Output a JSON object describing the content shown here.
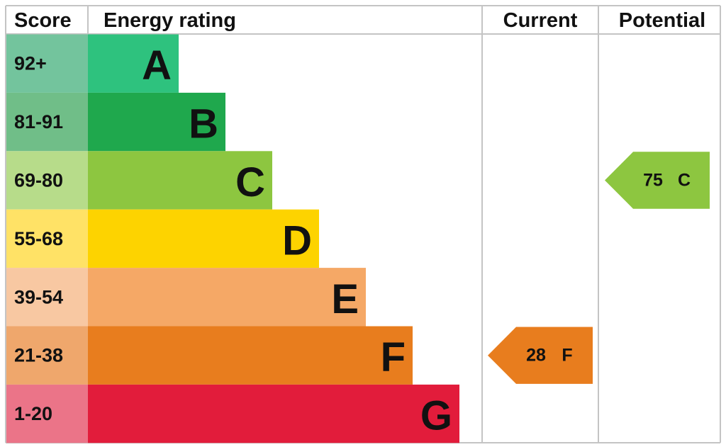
{
  "chart_data": {
    "type": "epc",
    "headers": {
      "score": "Score",
      "rating": "Energy rating",
      "current": "Current",
      "potential": "Potential"
    },
    "bands": [
      {
        "range": "92+",
        "letter": "A",
        "color": "#2ec27e",
        "score_color": "#73c49d"
      },
      {
        "range": "81-91",
        "letter": "B",
        "color": "#1fa84d",
        "score_color": "#70be88"
      },
      {
        "range": "69-80",
        "letter": "C",
        "color": "#8dc640",
        "score_color": "#b7dc8a"
      },
      {
        "range": "55-68",
        "letter": "D",
        "color": "#fdd300",
        "score_color": "#ffe266"
      },
      {
        "range": "39-54",
        "letter": "E",
        "color": "#f5a866",
        "score_color": "#f8c8a2"
      },
      {
        "range": "21-38",
        "letter": "F",
        "color": "#e87d1e",
        "score_color": "#efa76c"
      },
      {
        "range": "1-20",
        "letter": "G",
        "color": "#e21c3b",
        "score_color": "#eb7488"
      }
    ],
    "current": {
      "value": 28,
      "letter": "F"
    },
    "potential": {
      "value": 75,
      "letter": "C"
    }
  }
}
